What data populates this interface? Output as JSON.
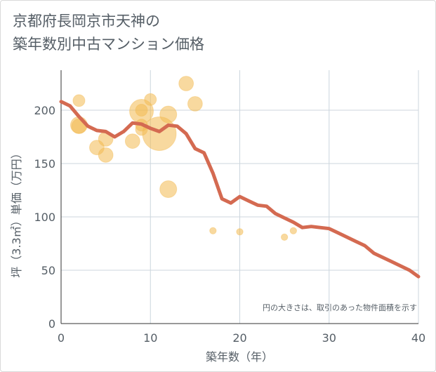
{
  "title_lines": [
    "京都府長岡京市天神の",
    "築年数別中古マンション価格"
  ],
  "chart_data": {
    "type": "scatter",
    "xlabel": "築年数（年）",
    "ylabel": "坪（3.3㎡）単価（万円）",
    "xlim": [
      0,
      40
    ],
    "ylim": [
      0,
      220
    ],
    "x_ticks": [
      0,
      10,
      20,
      30,
      40
    ],
    "y_ticks": [
      0,
      50,
      100,
      150,
      200
    ],
    "grid": true,
    "note": "円の大きさは、取引のあった物件面積を示す",
    "colors": {
      "bubble": "#f2b950",
      "line": "#d46a51",
      "grid": "#ccd6dd",
      "text": "#555e66"
    },
    "bubbles": [
      {
        "x": 2,
        "y": 209,
        "size": 2
      },
      {
        "x": 2,
        "y": 186,
        "size": 4
      },
      {
        "x": 2,
        "y": 185,
        "size": 3
      },
      {
        "x": 4,
        "y": 165,
        "size": 3
      },
      {
        "x": 5,
        "y": 173,
        "size": 3
      },
      {
        "x": 5,
        "y": 158,
        "size": 3
      },
      {
        "x": 8,
        "y": 171,
        "size": 3
      },
      {
        "x": 9,
        "y": 199,
        "size": 8
      },
      {
        "x": 9,
        "y": 200,
        "size": 2
      },
      {
        "x": 9,
        "y": 186,
        "size": 2
      },
      {
        "x": 9,
        "y": 182,
        "size": 2
      },
      {
        "x": 10,
        "y": 210,
        "size": 2
      },
      {
        "x": 11,
        "y": 178,
        "size": 16
      },
      {
        "x": 12,
        "y": 196,
        "size": 4
      },
      {
        "x": 12,
        "y": 126,
        "size": 4
      },
      {
        "x": 14,
        "y": 225,
        "size": 3
      },
      {
        "x": 15,
        "y": 206,
        "size": 3
      },
      {
        "x": 17,
        "y": 87,
        "size": 0.6
      },
      {
        "x": 20,
        "y": 86,
        "size": 0.6
      },
      {
        "x": 25,
        "y": 81,
        "size": 0.6
      },
      {
        "x": 26,
        "y": 87,
        "size": 0.6
      }
    ],
    "series": [
      {
        "x": [
          0,
          1,
          2,
          3,
          4,
          5,
          6,
          7,
          8,
          9,
          10,
          11,
          12,
          13,
          14,
          15,
          16,
          17,
          18,
          19,
          20,
          21,
          22,
          23,
          24,
          25,
          26,
          27,
          28,
          29,
          30,
          31,
          32,
          33,
          34,
          35,
          36,
          37,
          38,
          39,
          40
        ],
        "y": [
          208,
          204,
          194,
          185,
          181,
          180,
          175,
          180,
          188,
          187,
          183,
          180,
          186,
          185,
          178,
          164,
          160,
          141,
          117,
          113,
          119,
          115,
          111,
          110,
          103,
          99,
          95,
          90,
          91,
          90,
          89,
          85,
          81,
          77,
          73,
          66,
          62,
          58,
          54,
          50,
          44
        ]
      }
    ]
  }
}
